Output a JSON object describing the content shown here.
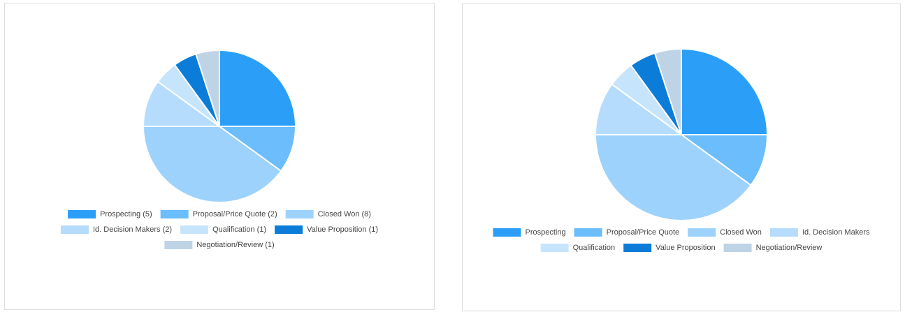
{
  "chart_data": [
    {
      "type": "pie",
      "categories": [
        "Prospecting (5)",
        "Proposal/Price Quote (2)",
        "Closed Won (8)",
        "Id. Decision Makers (2)",
        "Qualification (1)",
        "Value Proposition (1)",
        "Negotiation/Review (1)"
      ],
      "values": [
        5,
        2,
        8,
        2,
        1,
        1,
        1
      ],
      "colors": [
        "#2b9ff7",
        "#6bbdfb",
        "#9dd2fc",
        "#b5dcfc",
        "#c6e5fd",
        "#0b7dd8",
        "#bfd3e6"
      ]
    },
    {
      "type": "pie",
      "categories": [
        "Prospecting",
        "Proposal/Price Quote",
        "Closed Won",
        "Id. Decision Makers",
        "Qualification",
        "Value Proposition",
        "Negotiation/Review"
      ],
      "values": [
        5,
        2,
        8,
        2,
        1,
        1,
        1
      ],
      "colors": [
        "#2b9ff7",
        "#6bbdfb",
        "#9dd2fc",
        "#b5dcfc",
        "#c6e5fd",
        "#0b7dd8",
        "#bfd3e6"
      ]
    }
  ]
}
